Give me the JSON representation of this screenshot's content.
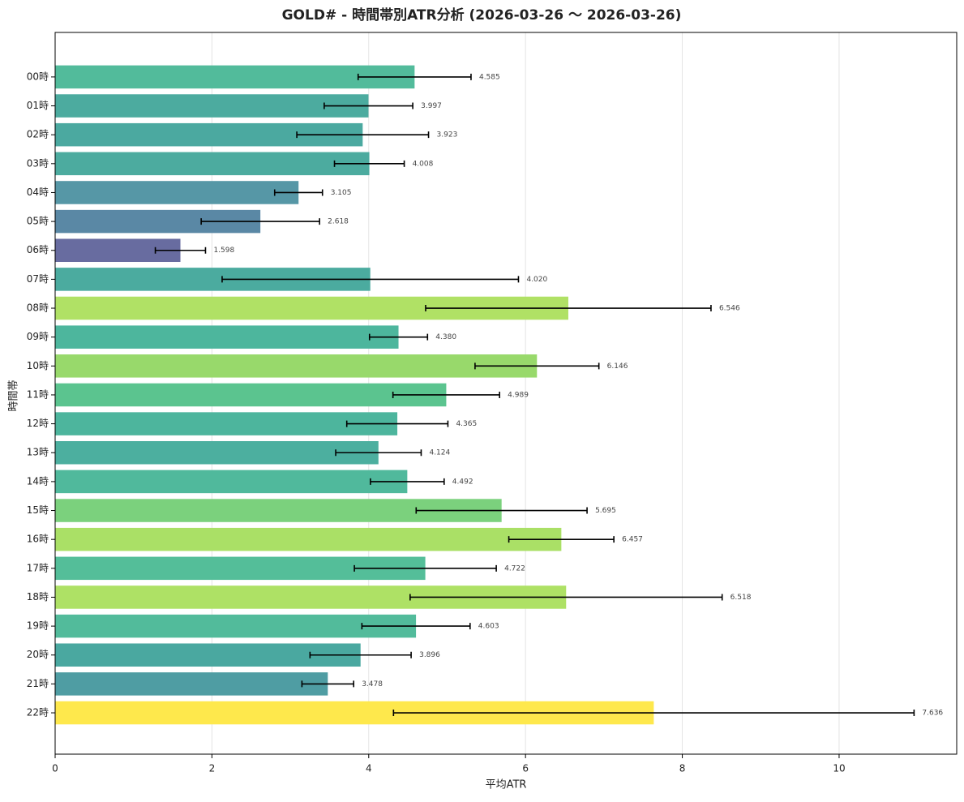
{
  "chart_data": {
    "type": "bar",
    "orientation": "horizontal",
    "title": "GOLD# - 時間帯別ATR分析 (2026-03-26 〜 2026-03-26)",
    "xlabel": "平均ATR",
    "ylabel": "時間帯",
    "categories": [
      "00時",
      "01時",
      "02時",
      "03時",
      "04時",
      "05時",
      "06時",
      "07時",
      "08時",
      "09時",
      "10時",
      "11時",
      "12時",
      "13時",
      "14時",
      "15時",
      "16時",
      "17時",
      "18時",
      "19時",
      "20時",
      "21時",
      "22時"
    ],
    "values": [
      4.585,
      3.997,
      3.923,
      4.008,
      3.105,
      2.618,
      1.598,
      4.02,
      6.546,
      4.38,
      6.146,
      4.989,
      4.365,
      4.124,
      4.492,
      5.695,
      6.457,
      4.722,
      6.518,
      4.603,
      3.896,
      3.478,
      7.636
    ],
    "value_labels": [
      "4.585",
      "3.997",
      "3.923",
      "4.008",
      "3.105",
      "2.618",
      "1.598",
      "4.020",
      "6.546",
      "4.380",
      "6.146",
      "4.989",
      "4.365",
      "4.124",
      "4.492",
      "5.695",
      "6.457",
      "4.722",
      "6.518",
      "4.603",
      "3.896",
      "3.478",
      "7.636"
    ],
    "errors": [
      0.72,
      0.565,
      0.84,
      0.445,
      0.305,
      0.755,
      0.32,
      1.89,
      1.82,
      0.37,
      0.79,
      0.68,
      0.645,
      0.545,
      0.47,
      1.09,
      0.67,
      0.905,
      1.99,
      0.69,
      0.645,
      0.33,
      3.32
    ],
    "colors": [
      "#52bb9b",
      "#4cab9f",
      "#4ba9a0",
      "#4cab9f",
      "#5697a6",
      "#5a88a5",
      "#686ca0",
      "#4bab9f",
      "#b0e165",
      "#4db69d",
      "#98d96b",
      "#5bc48f",
      "#4db59d",
      "#4caf9f",
      "#50b99c",
      "#7bd17d",
      "#aae066",
      "#54be99",
      "#aee165",
      "#52bb9b",
      "#4aa8a0",
      "#4f9da3",
      "#fee84c"
    ],
    "xlim": [
      0,
      11.5
    ],
    "xticks": [
      0,
      2,
      4,
      6,
      8,
      10
    ],
    "grid": true
  }
}
